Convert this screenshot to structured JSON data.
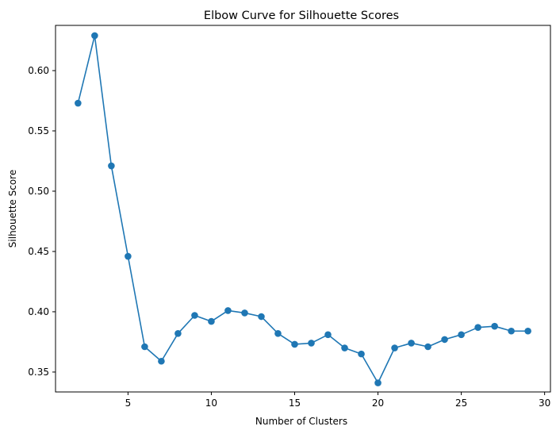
{
  "chart_data": {
    "type": "line",
    "title": "Elbow Curve for Silhouette Scores",
    "xlabel": "Number of Clusters",
    "ylabel": "Silhouette Score",
    "xlim": [
      0.65,
      30.35
    ],
    "ylim": [
      0.3335,
      0.6375
    ],
    "xticks": [
      5,
      10,
      15,
      20,
      25,
      30
    ],
    "yticks": [
      0.35,
      0.4,
      0.45,
      0.5,
      0.55,
      0.6
    ],
    "xtick_labels": [
      "5",
      "10",
      "15",
      "20",
      "25",
      "30"
    ],
    "ytick_labels": [
      "0.35",
      "0.40",
      "0.45",
      "0.50",
      "0.55",
      "0.60"
    ],
    "grid": false,
    "legend": false,
    "color": "#1f77b4",
    "marker": "circle",
    "series": [
      {
        "x": [
          2,
          3,
          4,
          5,
          6,
          7,
          8,
          9,
          10,
          11,
          12,
          13,
          14,
          15,
          16,
          17,
          18,
          19,
          20,
          21,
          22,
          23,
          24,
          25,
          26,
          27,
          28,
          29
        ],
        "y": [
          0.573,
          0.629,
          0.521,
          0.446,
          0.371,
          0.359,
          0.382,
          0.397,
          0.392,
          0.401,
          0.399,
          0.396,
          0.382,
          0.373,
          0.374,
          0.381,
          0.37,
          0.365,
          0.341,
          0.37,
          0.374,
          0.371,
          0.377,
          0.381,
          0.387,
          0.388,
          0.384,
          0.384
        ]
      }
    ]
  }
}
